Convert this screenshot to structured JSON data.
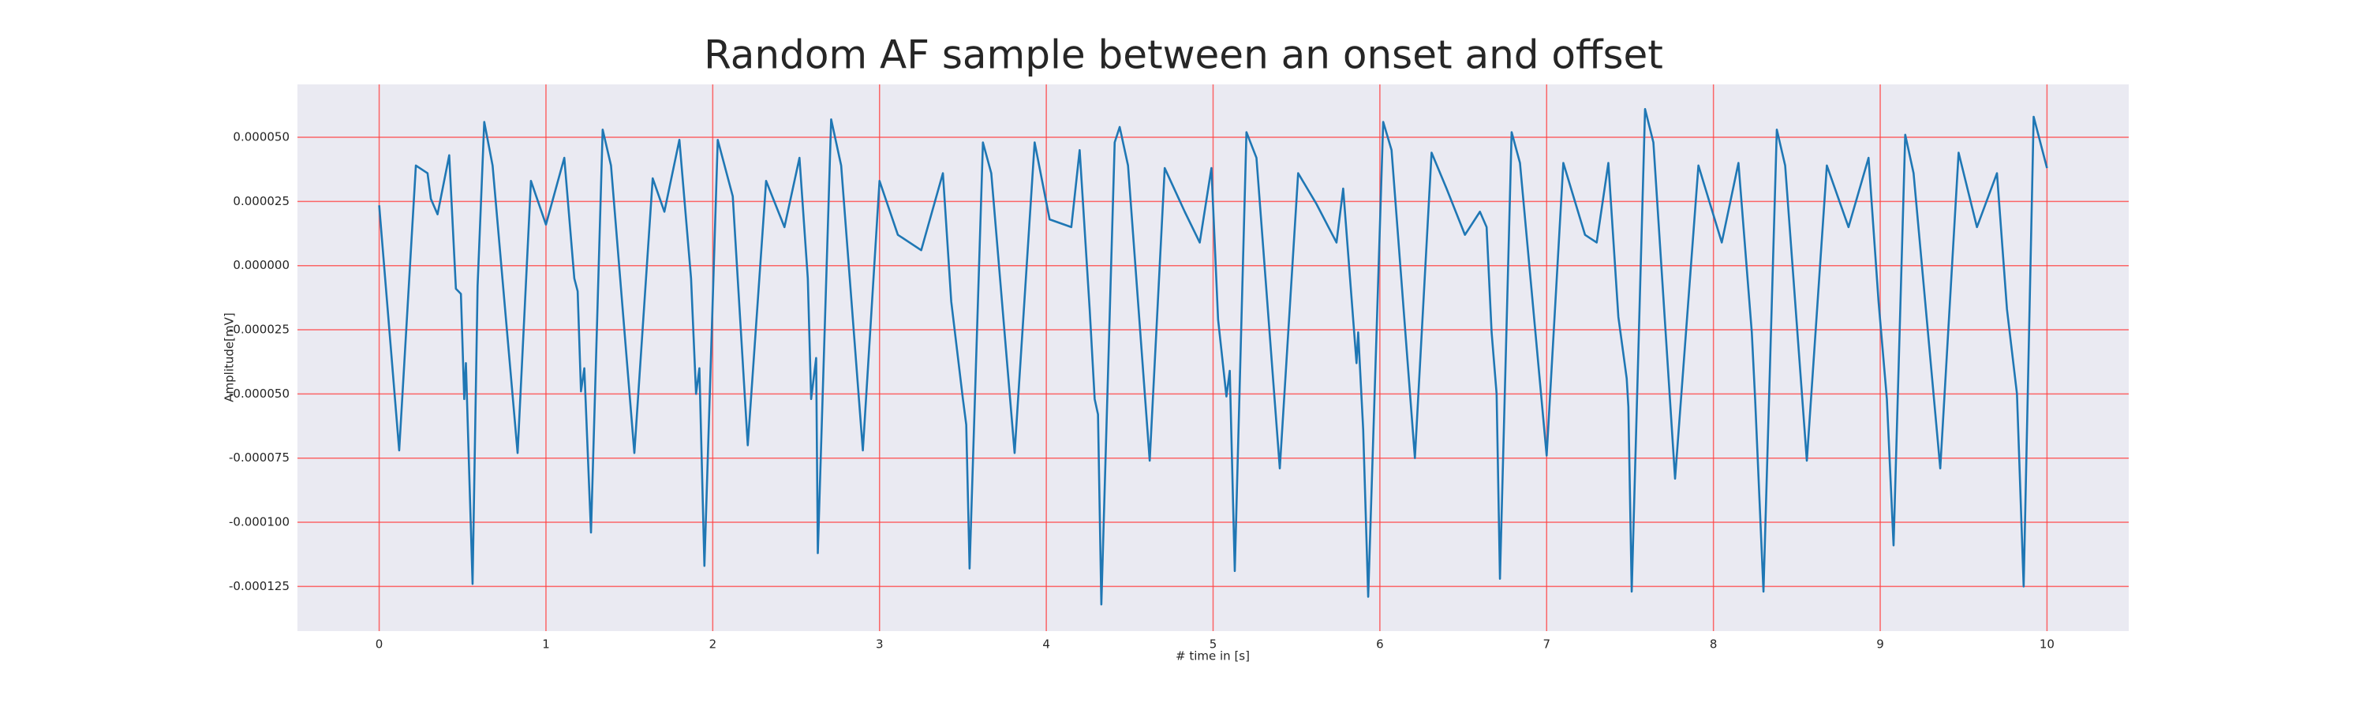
{
  "chart_data": {
    "type": "line",
    "title": "Random AF sample between an onset and offset",
    "x_label": "# time in [s]",
    "y_label": "Amplitude[mV]",
    "xlim": [
      -0.49,
      10.49
    ],
    "ylim": [
      -0.0001424,
      7.06e-05
    ],
    "xticks": [
      0,
      1,
      2,
      3,
      4,
      5,
      6,
      7,
      8,
      9,
      10
    ],
    "yticks": [
      {
        "value": 5e-05,
        "label": "0.000050"
      },
      {
        "value": 2.5e-05,
        "label": "0.000025"
      },
      {
        "value": 0,
        "label": "0.000000"
      },
      {
        "value": -2.5e-05,
        "label": "-0.000025"
      },
      {
        "value": -5e-05,
        "label": "-0.000050"
      },
      {
        "value": -7.5e-05,
        "label": "-0.000075"
      },
      {
        "value": -0.0001,
        "label": "-0.000100"
      },
      {
        "value": -0.000125,
        "label": "-0.000125"
      }
    ],
    "grid": true,
    "grid_color": "#ff4444",
    "background": "#eaeaf2",
    "series": [
      {
        "color": "#1f77b4",
        "x": [
          0.0,
          0.12,
          0.22,
          0.29,
          0.31,
          0.35,
          0.42,
          0.46,
          0.49,
          0.51,
          0.52,
          0.56,
          0.59,
          0.63,
          0.68,
          0.83,
          0.91,
          1.0,
          1.11,
          1.17,
          1.19,
          1.21,
          1.23,
          1.27,
          1.34,
          1.39,
          1.53,
          1.64,
          1.71,
          1.8,
          1.87,
          1.9,
          1.92,
          1.95,
          2.03,
          2.12,
          2.21,
          2.32,
          2.43,
          2.52,
          2.57,
          2.59,
          2.62,
          2.63,
          2.71,
          2.77,
          2.9,
          3.0,
          3.11,
          3.25,
          3.38,
          3.43,
          3.5,
          3.52,
          3.54,
          3.62,
          3.67,
          3.81,
          3.93,
          4.02,
          4.15,
          4.2,
          4.26,
          4.29,
          4.31,
          4.33,
          4.41,
          4.44,
          4.49,
          4.62,
          4.71,
          4.83,
          4.92,
          4.99,
          5.03,
          5.08,
          5.1,
          5.13,
          5.2,
          5.26,
          5.4,
          5.51,
          5.62,
          5.74,
          5.78,
          5.86,
          5.87,
          5.9,
          5.93,
          6.02,
          6.07,
          6.21,
          6.31,
          6.4,
          6.51,
          6.6,
          6.64,
          6.67,
          6.7,
          6.72,
          6.79,
          6.84,
          7.0,
          7.1,
          7.23,
          7.3,
          7.37,
          7.43,
          7.48,
          7.49,
          7.51,
          7.59,
          7.64,
          7.77,
          7.91,
          8.05,
          8.15,
          8.23,
          8.25,
          8.3,
          8.38,
          8.43,
          8.56,
          8.68,
          8.81,
          8.93,
          8.99,
          9.04,
          9.08,
          9.15,
          9.2,
          9.36,
          9.47,
          9.58,
          9.7,
          9.76,
          9.82,
          9.86,
          9.92,
          10.0
        ],
        "values": [
          2.35e-05,
          -7.2e-05,
          3.9e-05,
          3.6e-05,
          2.6e-05,
          2e-05,
          4.3e-05,
          -9e-06,
          -1.1e-05,
          -5.2e-05,
          -3.8e-05,
          -0.000124,
          -8e-06,
          5.6e-05,
          3.9e-05,
          -7.3e-05,
          3.3e-05,
          1.6e-05,
          4.2e-05,
          -5e-06,
          -1e-05,
          -4.9e-05,
          -4e-05,
          -0.000104,
          5.3e-05,
          3.9e-05,
          -7.3e-05,
          3.4e-05,
          2.1e-05,
          4.9e-05,
          -5e-06,
          -5e-05,
          -4e-05,
          -0.000117,
          4.9e-05,
          2.7e-05,
          -7e-05,
          3.3e-05,
          1.5e-05,
          4.2e-05,
          -5e-06,
          -5.2e-05,
          -3.6e-05,
          -0.000112,
          5.7e-05,
          3.9e-05,
          -7.2e-05,
          3.3e-05,
          1.2e-05,
          6e-06,
          3.6e-05,
          -1.4e-05,
          -5.2e-05,
          -6.2e-05,
          -0.000118,
          4.8e-05,
          3.6e-05,
          -7.3e-05,
          4.8e-05,
          1.8e-05,
          1.5e-05,
          4.5e-05,
          -1.7e-05,
          -5.2e-05,
          -5.8e-05,
          -0.000132,
          4.8e-05,
          5.4e-05,
          3.9e-05,
          -7.6e-05,
          3.8e-05,
          2.1e-05,
          9e-06,
          3.8e-05,
          -2.1e-05,
          -5.1e-05,
          -4.1e-05,
          -0.000119,
          5.2e-05,
          4.2e-05,
          -7.9e-05,
          3.6e-05,
          2.4e-05,
          9e-06,
          3e-05,
          -3.8e-05,
          -2.6e-05,
          -6.4e-05,
          -0.000129,
          5.6e-05,
          4.5e-05,
          -7.5e-05,
          4.4e-05,
          3e-05,
          1.2e-05,
          2.1e-05,
          1.5e-05,
          -2.6e-05,
          -5e-05,
          -0.000122,
          5.2e-05,
          4e-05,
          -7.4e-05,
          4e-05,
          1.2e-05,
          9e-06,
          4e-05,
          -2e-05,
          -4.4e-05,
          -5.5e-05,
          -0.000127,
          6.1e-05,
          4.8e-05,
          -8.3e-05,
          3.9e-05,
          9e-06,
          4e-05,
          -2.6e-05,
          -5.2e-05,
          -0.000127,
          5.3e-05,
          3.9e-05,
          -7.6e-05,
          3.9e-05,
          1.5e-05,
          4.2e-05,
          -1.4e-05,
          -5.2e-05,
          -0.000109,
          5.1e-05,
          3.6e-05,
          -7.9e-05,
          4.4e-05,
          1.5e-05,
          3.6e-05,
          -1.7e-05,
          -5e-05,
          -0.000125,
          5.8e-05,
          3.8e-05
        ]
      }
    ]
  }
}
